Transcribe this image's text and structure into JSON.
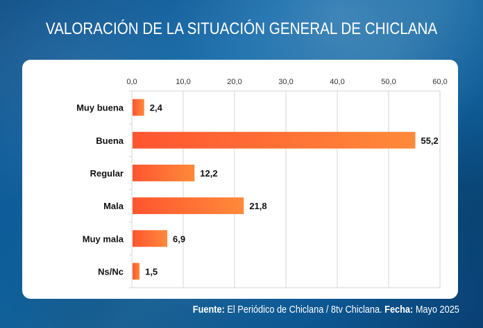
{
  "header": {
    "title": "VALORACIÓN DE LA SITUACIÓN GENERAL DE CHICLANA"
  },
  "footer": {
    "source_label": "Fuente:",
    "source_text": " El Periódico de Chiclana / 8tv Chiclana. ",
    "date_label": "Fecha:",
    "date_text": " Mayo 2025"
  },
  "colors": {
    "bar_start": "#ff5530",
    "bar_end": "#ff8a3a",
    "grid": "#d4d4d4",
    "background": "#0f67a8"
  },
  "chart_data": {
    "type": "bar",
    "orientation": "horizontal",
    "title": "VALORACIÓN DE LA SITUACIÓN GENERAL DE CHICLANA",
    "categories": [
      "Muy buena",
      "Buena",
      "Regular",
      "Mala",
      "Muy mala",
      "Ns/Nc"
    ],
    "values": [
      2.4,
      55.2,
      12.2,
      21.8,
      6.9,
      1.5
    ],
    "value_labels": [
      "2,4",
      "55,2",
      "12,2",
      "21,8",
      "6,9",
      "1,5"
    ],
    "xlabel": "",
    "ylabel": "",
    "xlim": [
      0,
      60
    ],
    "xticks": [
      0,
      10,
      20,
      30,
      40,
      50,
      60
    ],
    "xtick_labels": [
      "0,0",
      "10,0",
      "20,0",
      "30,0",
      "40,0",
      "50,0",
      "60,0"
    ],
    "x_axis_position": "top",
    "grid": true,
    "legend": "none"
  }
}
